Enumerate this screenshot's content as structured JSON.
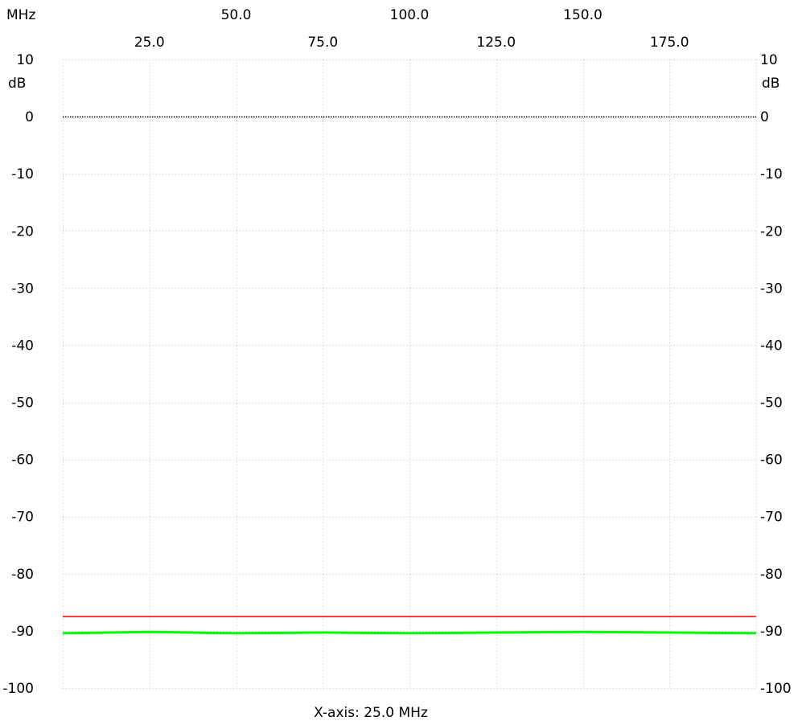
{
  "chart_data": {
    "type": "line",
    "title": "",
    "x_unit": "MHz",
    "y_unit": "dB",
    "xlabel": "X-axis: 25.0 MHz",
    "xlim": [
      0,
      200
    ],
    "ylim": [
      -100,
      10
    ],
    "x_ticks_top_row": [
      "50.0",
      "100.0",
      "150.0"
    ],
    "x_ticks_bottom_row": [
      "25.0",
      "75.0",
      "125.0",
      "175.0"
    ],
    "x_tick_values_top_row": [
      50,
      100,
      150
    ],
    "x_tick_values_bottom_row": [
      25,
      75,
      125,
      175
    ],
    "y_ticks": [
      "10",
      "0",
      "-10",
      "-20",
      "-30",
      "-40",
      "-50",
      "-60",
      "-70",
      "-80",
      "-90",
      "-100"
    ],
    "y_tick_values": [
      10,
      0,
      -10,
      -20,
      -30,
      -40,
      -50,
      -60,
      -70,
      -80,
      -90,
      -100
    ],
    "grid": true,
    "reference_line": {
      "y": 0,
      "color": "#000000",
      "style": "dotted"
    },
    "series": [
      {
        "color": "#ff0000",
        "x": [
          0,
          200
        ],
        "y": [
          -87.5,
          -87.5
        ]
      },
      {
        "color": "#00ff00",
        "x": [
          0,
          25,
          50,
          75,
          100,
          125,
          150,
          175,
          200
        ],
        "y": [
          -90.4,
          -90.2,
          -90.4,
          -90.3,
          -90.4,
          -90.3,
          -90.2,
          -90.3,
          -90.4
        ]
      }
    ]
  }
}
